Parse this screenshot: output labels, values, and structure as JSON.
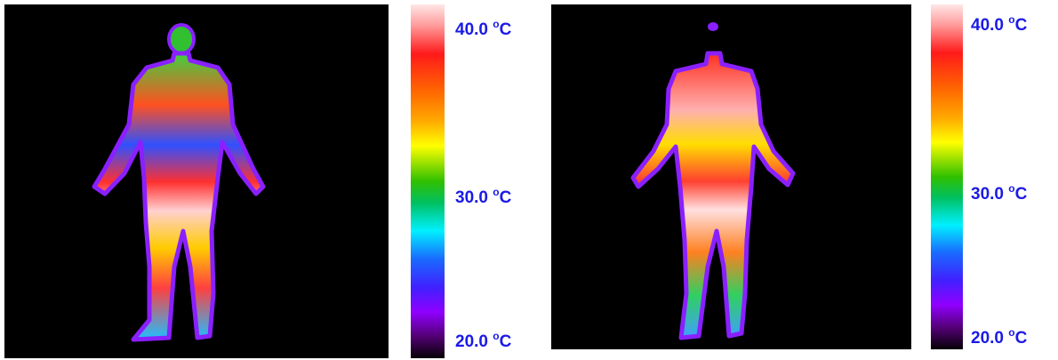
{
  "panels": [
    {
      "scale_labels": [
        {
          "number": "40.0",
          "degree": "o",
          "unit": "C"
        },
        {
          "number": "30.0",
          "degree": "o",
          "unit": "C"
        },
        {
          "number": "20.0",
          "degree": "o",
          "unit": "C"
        }
      ]
    },
    {
      "scale_labels": [
        {
          "number": "40.0",
          "degree": "o",
          "unit": "C"
        },
        {
          "number": "30.0",
          "degree": "o",
          "unit": "C"
        },
        {
          "number": "20.0",
          "degree": "o",
          "unit": "C"
        }
      ]
    }
  ]
}
